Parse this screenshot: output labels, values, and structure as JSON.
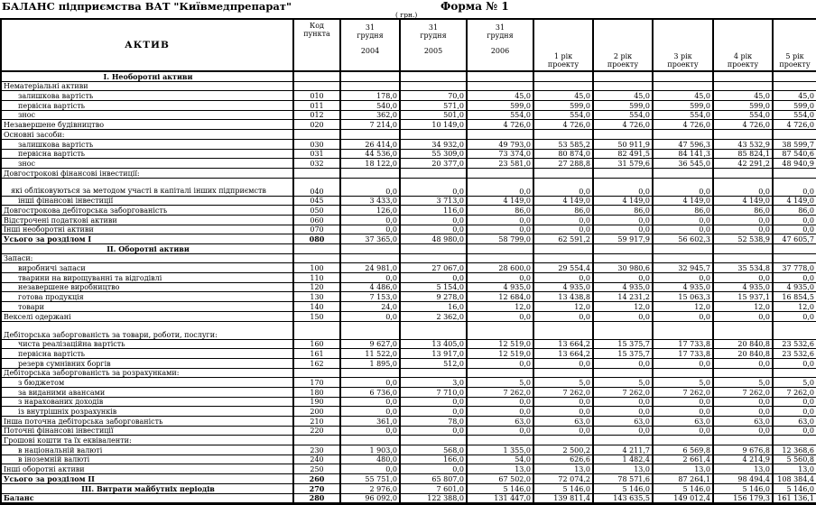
{
  "page": {
    "title": "БАЛАНС підприємства ВАТ \"Київмедпрепарат\"",
    "form_label": "Форма № 1",
    "currency_note": "( грн.)"
  },
  "table": {
    "header": {
      "aktiv": "АКТИВ",
      "code": [
        "Код",
        "пункта"
      ],
      "columns": [
        {
          "lines": [
            "31",
            "грудня",
            "2004"
          ]
        },
        {
          "lines": [
            "31",
            "грудня",
            "2005"
          ]
        },
        {
          "lines": [
            "31",
            "грудня",
            "2006"
          ]
        },
        {
          "lines": [
            "1 рік",
            "проекту"
          ]
        },
        {
          "lines": [
            "2 рік",
            "проекту"
          ]
        },
        {
          "lines": [
            "3 рік",
            "проекту"
          ]
        },
        {
          "lines": [
            "4 рік",
            "проекту"
          ]
        },
        {
          "lines": [
            "5 рік",
            "проекту"
          ]
        }
      ]
    },
    "rows": [
      {
        "type": "section",
        "label": "I. Необоротні активи"
      },
      {
        "type": "group",
        "label": "Нематеріальні активи"
      },
      {
        "type": "sub",
        "label": "залишкова вартість",
        "code": "010",
        "values": [
          "178,0",
          "70,0",
          "45,0",
          "45,0",
          "45,0",
          "45,0",
          "45,0",
          "45,0"
        ]
      },
      {
        "type": "sub",
        "label": "первісна вартість",
        "code": "011",
        "values": [
          "540,0",
          "571,0",
          "599,0",
          "599,0",
          "599,0",
          "599,0",
          "599,0",
          "599,0"
        ]
      },
      {
        "type": "sub",
        "label": "знос",
        "code": "012",
        "values": [
          "362,0",
          "501,0",
          "554,0",
          "554,0",
          "554,0",
          "554,0",
          "554,0",
          "554,0"
        ]
      },
      {
        "type": "item",
        "label": "Незавершене будівництво",
        "code": "020",
        "values": [
          "7 214,0",
          "10 149,0",
          "4 726,0",
          "4 726,0",
          "4 726,0",
          "4 726,0",
          "4 726,0",
          "4 726,0"
        ]
      },
      {
        "type": "group",
        "label": "Основні засоби:"
      },
      {
        "type": "sub",
        "label": "залишкова вартість",
        "code": "030",
        "values": [
          "26 414,0",
          "34 932,0",
          "49 793,0",
          "53 585,2",
          "50 911,9",
          "47 596,3",
          "43 532,9",
          "38 599,7"
        ]
      },
      {
        "type": "sub",
        "label": "первісна вартість",
        "code": "031",
        "values": [
          "44 536,0",
          "55 309,0",
          "73 374,0",
          "80 874,0",
          "82 491,5",
          "84 141,3",
          "85 824,1",
          "87 540,6"
        ]
      },
      {
        "type": "sub",
        "label": "знос",
        "code": "032",
        "values": [
          "18 122,0",
          "20 377,0",
          "23 581,0",
          "27 288,8",
          "31 579,6",
          "36 545,0",
          "42 291,2",
          "48 940,9"
        ]
      },
      {
        "type": "group",
        "label": "Довгострокові фінансові інвестиції:"
      },
      {
        "type": "sub2",
        "tall": true,
        "label": "які обліковуються за методом участі в капіталі інших підприємств",
        "code": "040",
        "values": [
          "0,0",
          "0,0",
          "0,0",
          "0,0",
          "0,0",
          "0,0",
          "0,0",
          "0,0"
        ]
      },
      {
        "type": "sub",
        "label": "інші фінансові інвестиції",
        "code": "045",
        "values": [
          "3 433,0",
          "3 713,0",
          "4 149,0",
          "4 149,0",
          "4 149,0",
          "4 149,0",
          "4 149,0",
          "4 149,0"
        ]
      },
      {
        "type": "item",
        "label": "Довгострокова дебіторська заборгованість",
        "code": "050",
        "values": [
          "126,0",
          "116,0",
          "86,0",
          "86,0",
          "86,0",
          "86,0",
          "86,0",
          "86,0"
        ]
      },
      {
        "type": "item",
        "label": "Відстрочені податкові активи",
        "code": "060",
        "values": [
          "0,0",
          "0,0",
          "0,0",
          "0,0",
          "0,0",
          "0,0",
          "0,0",
          "0,0"
        ]
      },
      {
        "type": "item",
        "label": "Інші необоротні активи",
        "code": "070",
        "values": [
          "0,0",
          "0,0",
          "0,0",
          "0,0",
          "0,0",
          "0,0",
          "0,0",
          "0,0"
        ]
      },
      {
        "type": "total",
        "label": "Усього за розділом I",
        "code": "080",
        "values": [
          "37 365,0",
          "48 980,0",
          "58 799,0",
          "62 591,2",
          "59 917,9",
          "56 602,3",
          "52 538,9",
          "47 605,7"
        ]
      },
      {
        "type": "section",
        "label": "II. Оборотні активи"
      },
      {
        "type": "group",
        "label": "Запаси:"
      },
      {
        "type": "sub",
        "label": "виробничі запаси",
        "code": "100",
        "values": [
          "24 981,0",
          "27 067,0",
          "28 600,0",
          "29 554,4",
          "30 980,6",
          "32 945,7",
          "35 534,8",
          "37 778,0"
        ]
      },
      {
        "type": "sub",
        "label": "тварини на вирощуванні та відгодівлі",
        "code": "110",
        "values": [
          "0,0",
          "0,0",
          "0,0",
          "0,0",
          "0,0",
          "0,0",
          "0,0",
          "0,0"
        ]
      },
      {
        "type": "sub",
        "label": "незавершене виробництво",
        "code": "120",
        "values": [
          "4 486,0",
          "5 154,0",
          "4 935,0",
          "4 935,0",
          "4 935,0",
          "4 935,0",
          "4 935,0",
          "4 935,0"
        ]
      },
      {
        "type": "sub",
        "label": "готова продукція",
        "code": "130",
        "values": [
          "7 153,0",
          "9 278,0",
          "12 684,0",
          "13 438,8",
          "14 231,2",
          "15 063,3",
          "15 937,1",
          "16 854,5"
        ]
      },
      {
        "type": "sub",
        "label": "товари",
        "code": "140",
        "values": [
          "24,0",
          "16,0",
          "12,0",
          "12,0",
          "12,0",
          "12,0",
          "12,0",
          "12,0"
        ]
      },
      {
        "type": "item",
        "label": "Векселі одержані",
        "code": "150",
        "values": [
          "0,0",
          "2 362,0",
          "0,0",
          "0,0",
          "0,0",
          "0,0",
          "0,0",
          "0,0"
        ]
      },
      {
        "type": "group",
        "tall": true,
        "label": "Дебіторська заборгованість за товари, роботи, послуги:"
      },
      {
        "type": "sub",
        "label": "чиста реалізаційна вартість",
        "code": "160",
        "values": [
          "9 627,0",
          "13 405,0",
          "12 519,0",
          "13 664,2",
          "15 375,7",
          "17 733,8",
          "20 840,8",
          "23 532,6"
        ]
      },
      {
        "type": "sub",
        "label": "первісна вартість",
        "code": "161",
        "values": [
          "11 522,0",
          "13 917,0",
          "12 519,0",
          "13 664,2",
          "15 375,7",
          "17 733,8",
          "20 840,8",
          "23 532,6"
        ]
      },
      {
        "type": "sub",
        "label": "резерв сумнівних боргів",
        "code": "162",
        "values": [
          "1 895,0",
          "512,0",
          "0,0",
          "0,0",
          "0,0",
          "0,0",
          "0,0",
          "0,0"
        ]
      },
      {
        "type": "group",
        "label": "Дебіторська заборгованість за розрахунками:"
      },
      {
        "type": "sub",
        "label": "з бюджетом",
        "code": "170",
        "values": [
          "0,0",
          "3,0",
          "5,0",
          "5,0",
          "5,0",
          "5,0",
          "5,0",
          "5,0"
        ]
      },
      {
        "type": "sub",
        "label": "за виданими авансами",
        "code": "180",
        "values": [
          "6 736,0",
          "7 710,0",
          "7 262,0",
          "7 262,0",
          "7 262,0",
          "7 262,0",
          "7 262,0",
          "7 262,0"
        ]
      },
      {
        "type": "sub",
        "label": "з нарахованих доходів",
        "code": "190",
        "values": [
          "0,0",
          "0,0",
          "0,0",
          "0,0",
          "0,0",
          "0,0",
          "0,0",
          "0,0"
        ]
      },
      {
        "type": "sub",
        "label": "із внутрішніх розрахунків",
        "code": "200",
        "values": [
          "0,0",
          "0,0",
          "0,0",
          "0,0",
          "0,0",
          "0,0",
          "0,0",
          "0,0"
        ]
      },
      {
        "type": "item",
        "label": "Інша поточна дебіторська заборгованість",
        "code": "210",
        "values": [
          "361,0",
          "78,0",
          "63,0",
          "63,0",
          "63,0",
          "63,0",
          "63,0",
          "63,0"
        ]
      },
      {
        "type": "item",
        "label": "Поточні фінансові інвестиції",
        "code": "220",
        "values": [
          "0,0",
          "0,0",
          "0,0",
          "0,0",
          "0,0",
          "0,0",
          "0,0",
          "0,0"
        ]
      },
      {
        "type": "group",
        "label": "Грошові кошти та їх еквіваленти:"
      },
      {
        "type": "sub",
        "label": "в національній валюті",
        "code": "230",
        "values": [
          "1 903,0",
          "568,0",
          "1 355,0",
          "2 500,2",
          "4 211,7",
          "6 569,8",
          "9 676,8",
          "12 368,6"
        ]
      },
      {
        "type": "sub",
        "label": "в іноземній валюті",
        "code": "240",
        "values": [
          "480,0",
          "166,0",
          "54,0",
          "626,6",
          "1 482,4",
          "2 661,4",
          "4 214,9",
          "5 560,8"
        ]
      },
      {
        "type": "item",
        "label": "Інші оборотні активи",
        "code": "250",
        "values": [
          "0,0",
          "0,0",
          "13,0",
          "13,0",
          "13,0",
          "13,0",
          "13,0",
          "13,0"
        ]
      },
      {
        "type": "total",
        "label": "Усього за розділом II",
        "code": "260",
        "values": [
          "55 751,0",
          "65 807,0",
          "67 502,0",
          "72 074,2",
          "78 571,6",
          "87 264,1",
          "98 494,4",
          "108 384,4"
        ]
      },
      {
        "type": "section_row",
        "label": "III. Витрати майбутніх періодів",
        "code": "270",
        "values": [
          "2 976,0",
          "7 601,0",
          "5 146,0",
          "5 146,0",
          "5 146,0",
          "5 146,0",
          "5 146,0",
          "5 146,0"
        ]
      },
      {
        "type": "total",
        "label": "Баланс",
        "code": "280",
        "values": [
          "96 092,0",
          "122 388,0",
          "131 447,0",
          "139 811,4",
          "143 635,5",
          "149 012,4",
          "156 179,3",
          "161 136,1"
        ]
      }
    ]
  }
}
